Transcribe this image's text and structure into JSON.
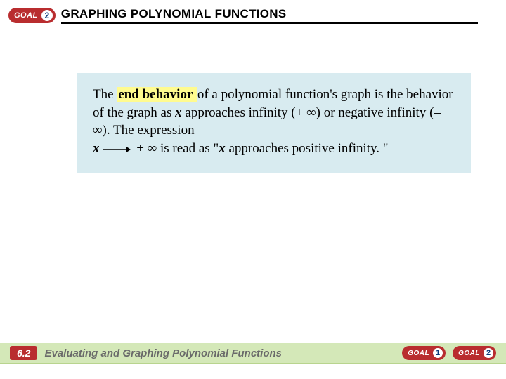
{
  "header": {
    "goal_label": "GOAL",
    "goal_number": "2",
    "title_html": "G<span class='smallcaps'>RAPHING</span> P<span class='smallcaps'>OLYNOMIAL</span> F<span class='smallcaps'>UNCTIONS</span>"
  },
  "content": {
    "text_before_highlight": "The ",
    "highlight": " end behavior ",
    "text_after_highlight": " of a polynomial function's graph is the behavior of the graph as ",
    "var_x": "x",
    "text_approaches": " approaches infinity (+ ∞) or negative infinity (– ∞). The expression ",
    "var_x2": "x",
    "arrow_to": " + ∞ is read as \"",
    "var_x3": "x",
    "text_end": " approaches positive infinity. \""
  },
  "footer": {
    "section_number": "6.2",
    "section_title": "Evaluating and Graphing Polynomial Functions",
    "goals": [
      {
        "label": "GOAL",
        "num": "1"
      },
      {
        "label": "GOAL",
        "num": "2"
      }
    ]
  },
  "colors": {
    "badge_bg": "#b92d2f",
    "content_bg": "#d8ebf0",
    "highlight_bg": "#fffb8f",
    "footer_bg": "#d4e8b8",
    "footer_text": "#6a6a6a",
    "goal_num_color": "#0a3a7a"
  }
}
